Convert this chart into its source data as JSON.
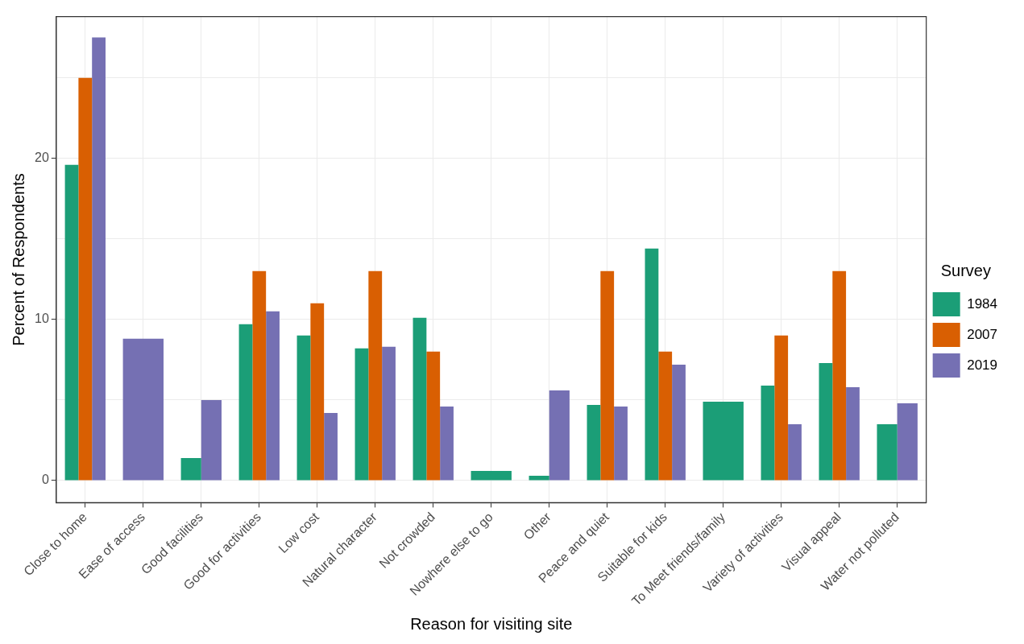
{
  "chart_data": {
    "type": "bar",
    "xlabel": "Reason for visiting site",
    "ylabel": "Percent of Respondents",
    "legend_title": "Survey",
    "legend": "right",
    "grid": true,
    "categories": [
      "Close to home",
      "Ease of access",
      "Good facilities",
      "Good for activities",
      "Low cost",
      "Natural character",
      "Not crowded",
      "Nowhere else to go",
      "Other",
      "Peace and quiet",
      "Suitable for kids",
      "To Meet friends/family",
      "Variety of activities",
      "Visual appeal",
      "Water not polluted"
    ],
    "series": [
      {
        "name": "1984",
        "color": "#1b9e77",
        "values": [
          19.6,
          null,
          1.4,
          9.7,
          9.0,
          8.2,
          10.1,
          0.6,
          0.3,
          4.7,
          14.4,
          4.9,
          5.9,
          7.3,
          3.5
        ]
      },
      {
        "name": "2007",
        "color": "#d95f02",
        "values": [
          25.0,
          null,
          null,
          13.0,
          11.0,
          13.0,
          8.0,
          null,
          null,
          13.0,
          8.0,
          null,
          9.0,
          13.0,
          null
        ]
      },
      {
        "name": "2019",
        "color": "#7570b3",
        "values": [
          27.5,
          8.8,
          5.0,
          10.5,
          4.2,
          8.3,
          4.6,
          null,
          5.6,
          4.6,
          7.2,
          null,
          3.5,
          5.8,
          4.8
        ]
      }
    ],
    "ylim": [
      -1.37,
      28.8
    ],
    "yticks": [
      0,
      {
        "value": 5,
        "label": null
      },
      10,
      {
        "value": 15,
        "label": null
      },
      20,
      {
        "value": 25,
        "label": null
      }
    ]
  }
}
